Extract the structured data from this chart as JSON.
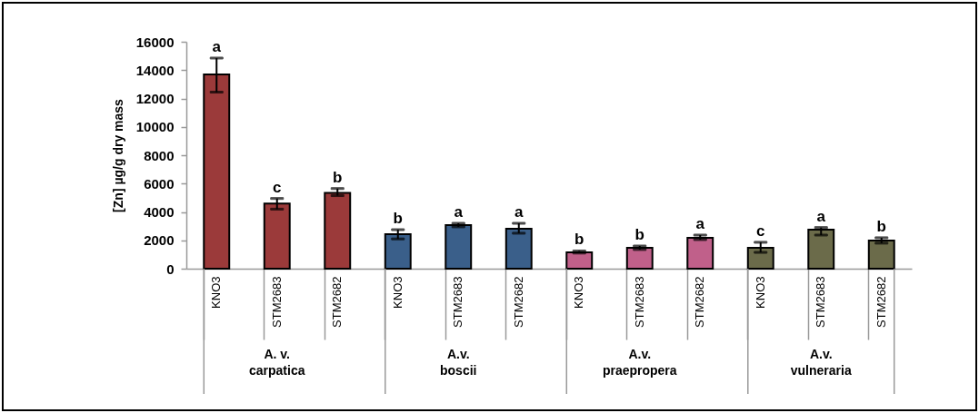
{
  "chart_data": {
    "type": "bar",
    "ylabel": "[Zn] µg/g dry mass",
    "categories": [
      "KNO3",
      "STM2683",
      "STM2682",
      "KNO3",
      "STM2683",
      "STM2682",
      "KNO3",
      "STM2683",
      "STM2682",
      "KNO3",
      "STM2683",
      "STM2682"
    ],
    "ylim": [
      0,
      16000
    ],
    "yticks": [
      0,
      2000,
      4000,
      6000,
      8000,
      10000,
      12000,
      14000,
      16000
    ],
    "grid": false,
    "legend": false,
    "series": [
      {
        "name": "A. v. carpatica",
        "color": "#9b3a3a",
        "values": [
          13700,
          4600,
          5350,
          null,
          null,
          null,
          null,
          null,
          null,
          null,
          null,
          null
        ],
        "errors": [
          [
            12450,
            14850
          ],
          [
            4200,
            4950
          ],
          [
            5150,
            5650
          ],
          null,
          null,
          null,
          null,
          null,
          null,
          null,
          null,
          null
        ],
        "value_labels": [
          "a",
          "c",
          "b",
          null,
          null,
          null,
          null,
          null,
          null,
          null,
          null,
          null
        ]
      },
      {
        "name": "A.v. boscii",
        "color": "#3a5f8a",
        "values": [
          null,
          null,
          null,
          2440,
          3070,
          2820,
          null,
          null,
          null,
          null,
          null,
          null
        ],
        "errors": [
          null,
          null,
          null,
          [
            2100,
            2750
          ],
          [
            2950,
            3200
          ],
          [
            2500,
            3200
          ],
          null,
          null,
          null,
          null,
          null,
          null
        ],
        "value_labels": [
          null,
          null,
          null,
          "b",
          "a",
          "a",
          null,
          null,
          null,
          null,
          null,
          null
        ]
      },
      {
        "name": "A.v. praepropera",
        "color": "#c0608a",
        "values": [
          null,
          null,
          null,
          null,
          null,
          null,
          1150,
          1470,
          2180,
          null,
          null,
          null
        ],
        "errors": [
          null,
          null,
          null,
          null,
          null,
          null,
          [
            1100,
            1250
          ],
          [
            1350,
            1600
          ],
          [
            2050,
            2370
          ],
          null,
          null,
          null
        ],
        "value_labels": [
          null,
          null,
          null,
          null,
          null,
          null,
          "b",
          "b",
          "a",
          null,
          null,
          null
        ]
      },
      {
        "name": "A.v. vulneraria",
        "color": "#6b6b4a",
        "values": [
          null,
          null,
          null,
          null,
          null,
          null,
          null,
          null,
          null,
          1470,
          2750,
          1990
        ],
        "errors": [
          null,
          null,
          null,
          null,
          null,
          null,
          null,
          null,
          null,
          [
            1150,
            1860
          ],
          [
            2370,
            2900
          ],
          [
            1800,
            2180
          ]
        ],
        "value_labels": [
          null,
          null,
          null,
          null,
          null,
          null,
          null,
          null,
          null,
          "c",
          "a",
          "b"
        ]
      }
    ]
  }
}
